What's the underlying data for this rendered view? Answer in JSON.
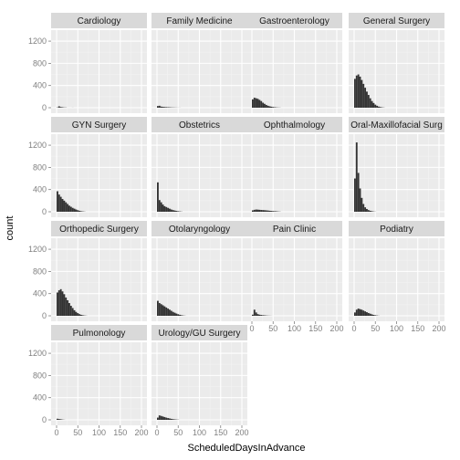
{
  "chart_data": {
    "type": "bar",
    "subtype": "faceted-histogram",
    "title": "",
    "xlabel": "ScheduledDaysInAdvance",
    "ylabel": "count",
    "xlim": [
      0,
      200
    ],
    "ylim": [
      0,
      1300
    ],
    "x_ticks": [
      "0",
      "50",
      "100",
      "150",
      "200"
    ],
    "y_ticks": [
      "0",
      "400",
      "800",
      "1200"
    ],
    "x_tick_values": [
      0,
      50,
      100,
      150,
      200
    ],
    "y_tick_values": [
      0,
      400,
      800,
      1200
    ],
    "grid": true,
    "background": "#ebebeb",
    "strip_background": "#d9d9d9",
    "bar_color": "#333333",
    "binwidth": 4,
    "layout": {
      "rows": 4,
      "cols": 4
    },
    "facets": [
      {
        "name": "Cardiology",
        "counts": [
          5,
          25,
          12,
          8,
          4,
          3,
          0,
          0,
          0,
          1
        ]
      },
      {
        "name": "Family Medicine",
        "counts": [
          30,
          35,
          20,
          15,
          12,
          10,
          8,
          7,
          5,
          4,
          3,
          2,
          1,
          1
        ]
      },
      {
        "name": "Gastroenterology",
        "counts": [
          150,
          180,
          170,
          160,
          140,
          120,
          90,
          70,
          50,
          35,
          25,
          18,
          12,
          8,
          5,
          3,
          2
        ]
      },
      {
        "name": "General Surgery",
        "counts": [
          520,
          580,
          600,
          560,
          500,
          430,
          360,
          290,
          230,
          170,
          120,
          85,
          55,
          35,
          20,
          12,
          6,
          3
        ]
      },
      {
        "name": "GYN Surgery",
        "counts": [
          370,
          310,
          270,
          230,
          200,
          170,
          140,
          110,
          90,
          70,
          55,
          40,
          28,
          18,
          10,
          6,
          3
        ]
      },
      {
        "name": "Obstetrics",
        "counts": [
          530,
          210,
          170,
          130,
          100,
          85,
          70,
          55,
          40,
          30,
          22,
          15,
          10,
          6,
          3
        ]
      },
      {
        "name": "Ophthalmology",
        "counts": [
          25,
          35,
          40,
          38,
          35,
          32,
          30,
          28,
          25,
          22,
          18,
          15,
          12,
          10,
          8,
          5,
          3
        ]
      },
      {
        "name": "Oral-Maxillofacial Surg",
        "counts": [
          600,
          1250,
          700,
          420,
          250,
          140,
          80,
          50,
          30,
          18,
          10,
          5,
          2
        ]
      },
      {
        "name": "Orthopedic Surgery",
        "counts": [
          420,
          460,
          480,
          440,
          390,
          330,
          280,
          230,
          180,
          140,
          100,
          70,
          48,
          30,
          18,
          10,
          5,
          2
        ]
      },
      {
        "name": "Otolaryngology",
        "counts": [
          270,
          230,
          210,
          190,
          170,
          150,
          130,
          110,
          90,
          70,
          55,
          40,
          28,
          18,
          10,
          5,
          2
        ]
      },
      {
        "name": "Pain Clinic",
        "counts": [
          20,
          110,
          60,
          30,
          20,
          15,
          10,
          8,
          5,
          3,
          2,
          1
        ]
      },
      {
        "name": "Podiatry",
        "counts": [
          60,
          110,
          130,
          120,
          110,
          95,
          80,
          65,
          50,
          38,
          26,
          16,
          10,
          5,
          2
        ]
      },
      {
        "name": "Pulmonology",
        "counts": [
          20,
          15,
          10,
          5,
          2
        ]
      },
      {
        "name": "Urology/GU Surgery",
        "counts": [
          40,
          80,
          70,
          60,
          50,
          40,
          32,
          25,
          18,
          12,
          8,
          5,
          3
        ]
      }
    ]
  }
}
